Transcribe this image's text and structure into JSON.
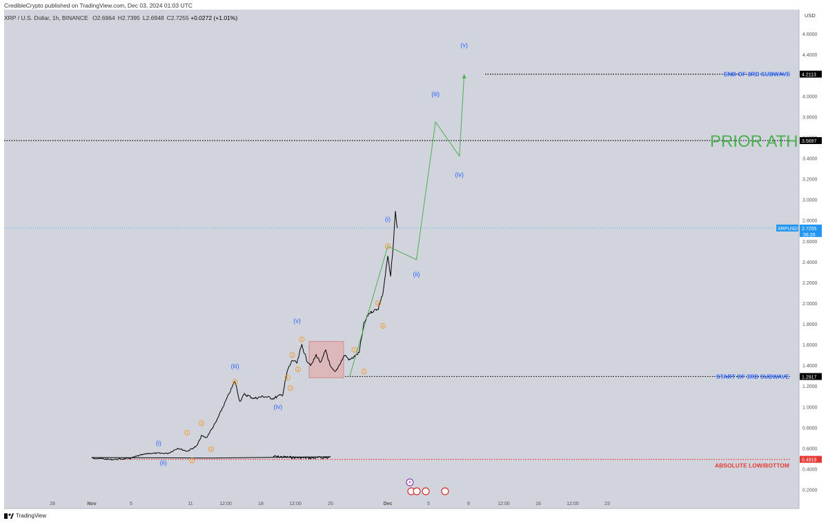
{
  "header": {
    "published": "CredibleCrypto published on TradingView.com, Dec 03, 2024 01:03 UTC",
    "symbol": "XRP / U.S. Dollar, 1h, BINANCE",
    "ohlc": [
      {
        "k": "O",
        "v": "2.6964"
      },
      {
        "k": "H",
        "v": "2.7395"
      },
      {
        "k": "L",
        "v": "2.6948"
      },
      {
        "k": "C",
        "v": "2.7255"
      }
    ],
    "change": "+0.0272 (+1.01%)"
  },
  "currency": "USD",
  "brand": "TradingView",
  "colors": {
    "plot_bg": "#d1d4dc",
    "price": "#000000",
    "wave_blue": "#2962ff",
    "wave_orange": "#f7931a",
    "projection": "#4caf50",
    "low_line": "#e53935",
    "current": "#2196f3",
    "box": "#e8a0a0"
  },
  "chart_data": {
    "type": "line",
    "title": "",
    "xlabel": "",
    "ylabel": "USD",
    "ylim": [
      0.1,
      4.72
    ],
    "x_ticks": [
      "28",
      "Nov",
      "5",
      "11",
      "12:00",
      "18",
      "12:00",
      "25",
      "Dec",
      "5",
      "9",
      "12:00",
      "16",
      "12:00",
      "23"
    ],
    "y_ticks": [
      "0.2000",
      "0.4000",
      "0.6000",
      "0.8000",
      "1.0000",
      "1.2000",
      "1.4000",
      "1.6000",
      "1.8000",
      "2.0000",
      "2.2000",
      "2.4000",
      "2.6000",
      "2.8000",
      "3.0000",
      "3.2000",
      "3.4000",
      "3.6000",
      "3.8000",
      "4.0000",
      "4.2000",
      "4.4000",
      "4.6000"
    ],
    "price_series": {
      "name": "XRPUSD",
      "points": [
        [
          "Oct 24",
          0.52
        ],
        [
          "Oct 26",
          0.51
        ],
        [
          "Oct 28",
          0.505
        ],
        [
          "Oct 30",
          0.51
        ],
        [
          "Nov 1",
          0.505
        ],
        [
          "Nov 3",
          0.49
        ],
        [
          "Nov 5",
          0.5
        ],
        [
          "Nov 6",
          0.53
        ],
        [
          "Nov 7",
          0.55
        ],
        [
          "Nov 9",
          0.55
        ],
        [
          "Nov 10",
          0.6
        ],
        [
          "Nov 11",
          0.57
        ],
        [
          "Nov 12",
          0.62
        ],
        [
          "Nov 12.5",
          0.72
        ],
        [
          "Nov 13",
          0.7
        ],
        [
          "Nov 14",
          0.85
        ],
        [
          "Nov 15",
          1.05
        ],
        [
          "Nov 16",
          1.25
        ],
        [
          "Nov 16.5",
          1.05
        ],
        [
          "Nov 17",
          1.12
        ],
        [
          "Nov 18",
          1.08
        ],
        [
          "Nov 19",
          1.1
        ],
        [
          "Nov 20",
          1.08
        ],
        [
          "Nov 21",
          1.12
        ],
        [
          "Nov 21.5",
          1.35
        ],
        [
          "Nov 22",
          1.45
        ],
        [
          "Nov 22.5",
          1.42
        ],
        [
          "Nov 23",
          1.6
        ],
        [
          "Nov 23.5",
          1.45
        ],
        [
          "Nov 24",
          1.4
        ],
        [
          "Nov 24.5",
          1.5
        ],
        [
          "Nov 25",
          1.42
        ],
        [
          "Nov 25.5",
          1.55
        ],
        [
          "Nov 26",
          1.38
        ],
        [
          "Nov 26.5",
          1.33
        ],
        [
          "Nov 27",
          1.42
        ],
        [
          "Nov 27.5",
          1.5
        ],
        [
          "Nov 28",
          1.45
        ],
        [
          "Nov 29",
          1.52
        ],
        [
          "Nov 29.5",
          1.8
        ],
        [
          "Nov 30",
          1.9
        ],
        [
          "Dec 1",
          1.95
        ],
        [
          "Dec 1.5",
          2.1
        ],
        [
          "Dec 2",
          2.45
        ],
        [
          "Dec 2.3",
          2.25
        ],
        [
          "Dec 2.6",
          2.6
        ],
        [
          "Dec 2.8",
          2.88
        ],
        [
          "Dec 3",
          2.7255
        ]
      ]
    },
    "projection_series": {
      "name": "",
      "points": [
        [
          "Nov 28",
          1.29
        ],
        [
          "Dec 2",
          2.55
        ],
        [
          "Dec 5",
          2.42
        ],
        [
          "Dec 7",
          3.75
        ],
        [
          "Dec 9.5",
          3.42
        ],
        [
          "Dec 10",
          4.2113
        ]
      ]
    },
    "levels": [
      {
        "label": "END OF 3RD SUBWAVE",
        "value": 4.2113,
        "tag": "4.2113"
      },
      {
        "label": "PRIOR ATH",
        "value": 3.5697,
        "tag": "3.5697"
      },
      {
        "label": "START OF 3RD SUBWAVE",
        "value": 1.2917,
        "tag": "1.2917"
      },
      {
        "label": "ABSOLUTE LOW/BOTTOM",
        "value": 0.4919,
        "tag": "0.4919"
      }
    ],
    "current": {
      "symbol": "XRPUSD",
      "price": "2.7255",
      "countdown": "56:20",
      "value": 2.7255
    },
    "consolidation_box": {
      "x_from": "Nov 22.5",
      "x_to": "Nov 27",
      "y_from": 1.28,
      "y_to": 1.63
    },
    "wave_labels_blue": [
      {
        "text": "(i)",
        "x": "Nov 8",
        "y": 0.63
      },
      {
        "text": "(ii)",
        "x": "Nov 8.5",
        "y": 0.44
      },
      {
        "text": "(iii)",
        "x": "Nov 16",
        "y": 1.37
      },
      {
        "text": "(iv)",
        "x": "Nov 20.5",
        "y": 0.98
      },
      {
        "text": "(v)",
        "x": "Nov 22.5",
        "y": 1.81
      },
      {
        "text": "(i)",
        "x": "Dec 2",
        "y": 2.79
      },
      {
        "text": "(ii)",
        "x": "Dec 5",
        "y": 2.26
      },
      {
        "text": "(iii)",
        "x": "Dec 7",
        "y": 4.0
      },
      {
        "text": "(iv)",
        "x": "Dec 9.5",
        "y": 3.22
      },
      {
        "text": "(v)",
        "x": "Dec 10",
        "y": 4.47
      }
    ],
    "wave_labels_orange": [
      {
        "text": "1",
        "x": "Nov 11",
        "y": 0.75
      },
      {
        "text": "2",
        "x": "Nov 11.5",
        "y": 0.48
      },
      {
        "text": "3",
        "x": "Nov 12.5",
        "y": 0.84
      },
      {
        "text": "4",
        "x": "Nov 13.5",
        "y": 0.59
      },
      {
        "text": "5",
        "x": "Nov 16",
        "y": 1.24
      },
      {
        "text": "1",
        "x": "Nov 21.5",
        "y": 1.28
      },
      {
        "text": "2",
        "x": "Nov 21.8",
        "y": 1.18
      },
      {
        "text": "3",
        "x": "Nov 22",
        "y": 1.5
      },
      {
        "text": "4",
        "x": "Nov 22.6",
        "y": 1.36
      },
      {
        "text": "5",
        "x": "Nov 23",
        "y": 1.65
      },
      {
        "text": "1",
        "x": "Nov 28.5",
        "y": 1.55
      },
      {
        "text": "2",
        "x": "Nov 29.5",
        "y": 1.34
      },
      {
        "text": "3",
        "x": "Dec 1",
        "y": 2.0
      },
      {
        "text": "4",
        "x": "Dec 1.5",
        "y": 1.78
      },
      {
        "text": "5",
        "x": "Dec 2",
        "y": 2.55
      }
    ]
  }
}
